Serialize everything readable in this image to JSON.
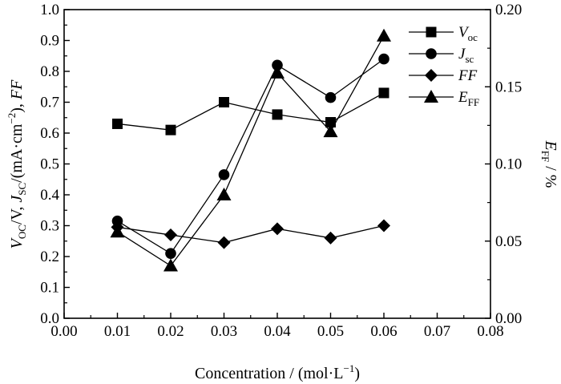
{
  "chart_data": {
    "type": "line",
    "x": [
      0.01,
      0.02,
      0.03,
      0.04,
      0.05,
      0.06
    ],
    "xlabel": "Concentration / (mol·L⁻¹)",
    "ylabel": "V_OC/V, J_SC/(mA·cm⁻²), FF",
    "y2label": "E_FF / %",
    "xlim": [
      0.0,
      0.08
    ],
    "ylim": [
      0.0,
      1.0
    ],
    "y2lim": [
      0.0,
      0.2
    ],
    "x_ticks": [
      "0.00",
      "0.01",
      "0.02",
      "0.03",
      "0.04",
      "0.05",
      "0.06",
      "0.07",
      "0.08"
    ],
    "y_ticks": [
      "0.0",
      "0.1",
      "0.2",
      "0.3",
      "0.4",
      "0.5",
      "0.6",
      "0.7",
      "0.8",
      "0.9",
      "1.0"
    ],
    "y2_ticks": [
      "0.00",
      "0.05",
      "0.10",
      "0.15",
      "0.20"
    ],
    "grid": false,
    "legend_position": "top-right",
    "series": [
      {
        "name": "Voc",
        "marker": "square",
        "axis": "left",
        "values": [
          0.63,
          0.61,
          0.7,
          0.66,
          0.635,
          0.73
        ]
      },
      {
        "name": "Jsc",
        "marker": "circle",
        "axis": "left",
        "values": [
          0.315,
          0.21,
          0.465,
          0.82,
          0.715,
          0.84
        ]
      },
      {
        "name": "FF",
        "marker": "diamond",
        "axis": "left",
        "values": [
          0.295,
          0.27,
          0.245,
          0.29,
          0.26,
          0.3
        ]
      },
      {
        "name": "EFF",
        "marker": "triangle",
        "axis": "right",
        "values": [
          0.056,
          0.034,
          0.08,
          0.159,
          0.121,
          0.183
        ]
      }
    ]
  }
}
